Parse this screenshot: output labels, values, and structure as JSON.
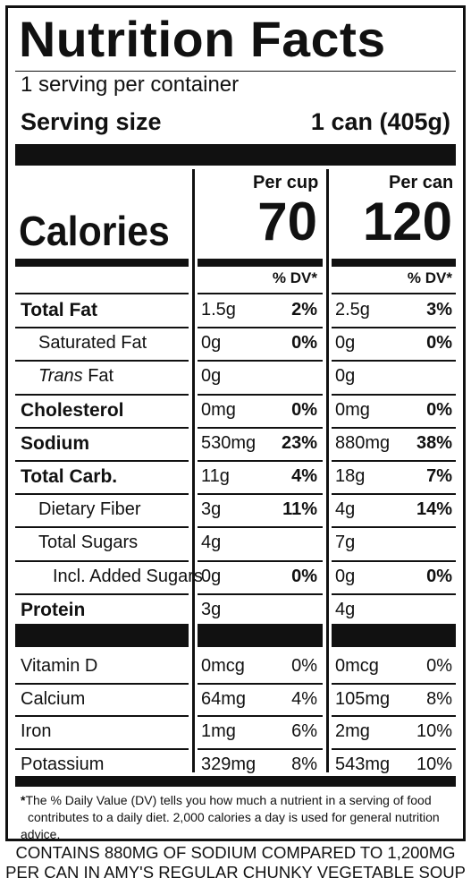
{
  "label": {
    "title": "Nutrition Facts",
    "servings_per_container": "1 serving per container",
    "serving_size_label": "Serving size",
    "serving_size_value": "1 can (405g)",
    "col1_header": "Per cup",
    "col2_header": "Per can",
    "calories_label": "Calories",
    "calories_cup": "70",
    "calories_can": "120",
    "dv_header": "% DV*",
    "nutrients": [
      {
        "name": "Total Fat",
        "cup_amt": "1.5g",
        "cup_dv": "2%",
        "can_amt": "2.5g",
        "can_dv": "3%"
      },
      {
        "name": "Saturated Fat",
        "cup_amt": "0g",
        "cup_dv": "0%",
        "can_amt": "0g",
        "can_dv": "0%"
      },
      {
        "name_italic": "Trans",
        "name_rest": " Fat",
        "cup_amt": "0g",
        "cup_dv": "",
        "can_amt": "0g",
        "can_dv": ""
      },
      {
        "name": "Cholesterol",
        "cup_amt": "0mg",
        "cup_dv": "0%",
        "can_amt": "0mg",
        "can_dv": "0%"
      },
      {
        "name": "Sodium",
        "cup_amt": "530mg",
        "cup_dv": "23%",
        "can_amt": "880mg",
        "can_dv": "38%"
      },
      {
        "name": "Total Carb.",
        "cup_amt": "11g",
        "cup_dv": "4%",
        "can_amt": "18g",
        "can_dv": "7%"
      },
      {
        "name": "Dietary Fiber",
        "cup_amt": "3g",
        "cup_dv": "11%",
        "can_amt": "4g",
        "can_dv": "14%"
      },
      {
        "name": "Total Sugars",
        "cup_amt": "4g",
        "cup_dv": "",
        "can_amt": "7g",
        "can_dv": ""
      },
      {
        "name": "Incl. Added Sugars",
        "cup_amt": "0g",
        "cup_dv": "0%",
        "can_amt": "0g",
        "can_dv": "0%"
      },
      {
        "name": "Protein",
        "cup_amt": "3g",
        "cup_dv": "",
        "can_amt": "4g",
        "can_dv": ""
      }
    ],
    "vitamins": [
      {
        "name": "Vitamin D",
        "cup_amt": "0mcg",
        "cup_dv": "0%",
        "can_amt": "0mcg",
        "can_dv": "0%"
      },
      {
        "name": "Calcium",
        "cup_amt": "64mg",
        "cup_dv": "4%",
        "can_amt": "105mg",
        "can_dv": "8%"
      },
      {
        "name": "Iron",
        "cup_amt": "1mg",
        "cup_dv": "6%",
        "can_amt": "2mg",
        "can_dv": "10%"
      },
      {
        "name": "Potassium",
        "cup_amt": "329mg",
        "cup_dv": "8%",
        "can_amt": "543mg",
        "can_dv": "10%"
      }
    ],
    "footnote_star": "*",
    "footnote_line1": "The % Daily Value (DV) tells you how much a nutrient in a serving of food",
    "footnote_line2": "contributes to a daily diet. 2,000 calories a day is used for general nutrition advice."
  },
  "claim": {
    "line1": "CONTAINS 880MG OF SODIUM COMPARED TO 1,200MG",
    "line2": "PER CAN IN AMY'S REGULAR CHUNKY VEGETABLE SOUP"
  }
}
